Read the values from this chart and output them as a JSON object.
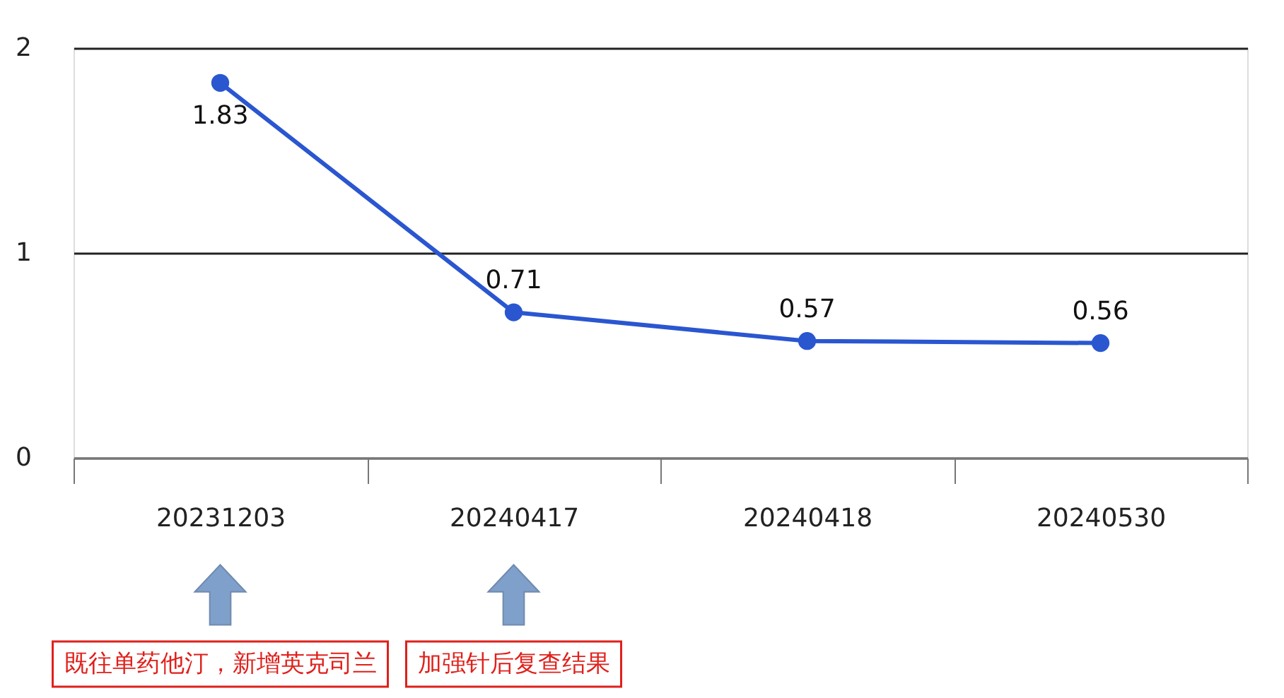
{
  "chart_data": {
    "type": "line",
    "categories": [
      "20231203",
      "20240417",
      "20240418",
      "20240530"
    ],
    "series": [
      {
        "color": "#2a56d0",
        "values": [
          1.83,
          0.71,
          0.57,
          0.56
        ]
      }
    ],
    "ylim": [
      0,
      2
    ],
    "yticks": [
      0,
      1,
      2
    ],
    "grid": "y",
    "marker": "circle",
    "data_labels": true,
    "annotations": [
      "既往单药他汀，新增英克司兰",
      "加强针后复查结果"
    ]
  }
}
